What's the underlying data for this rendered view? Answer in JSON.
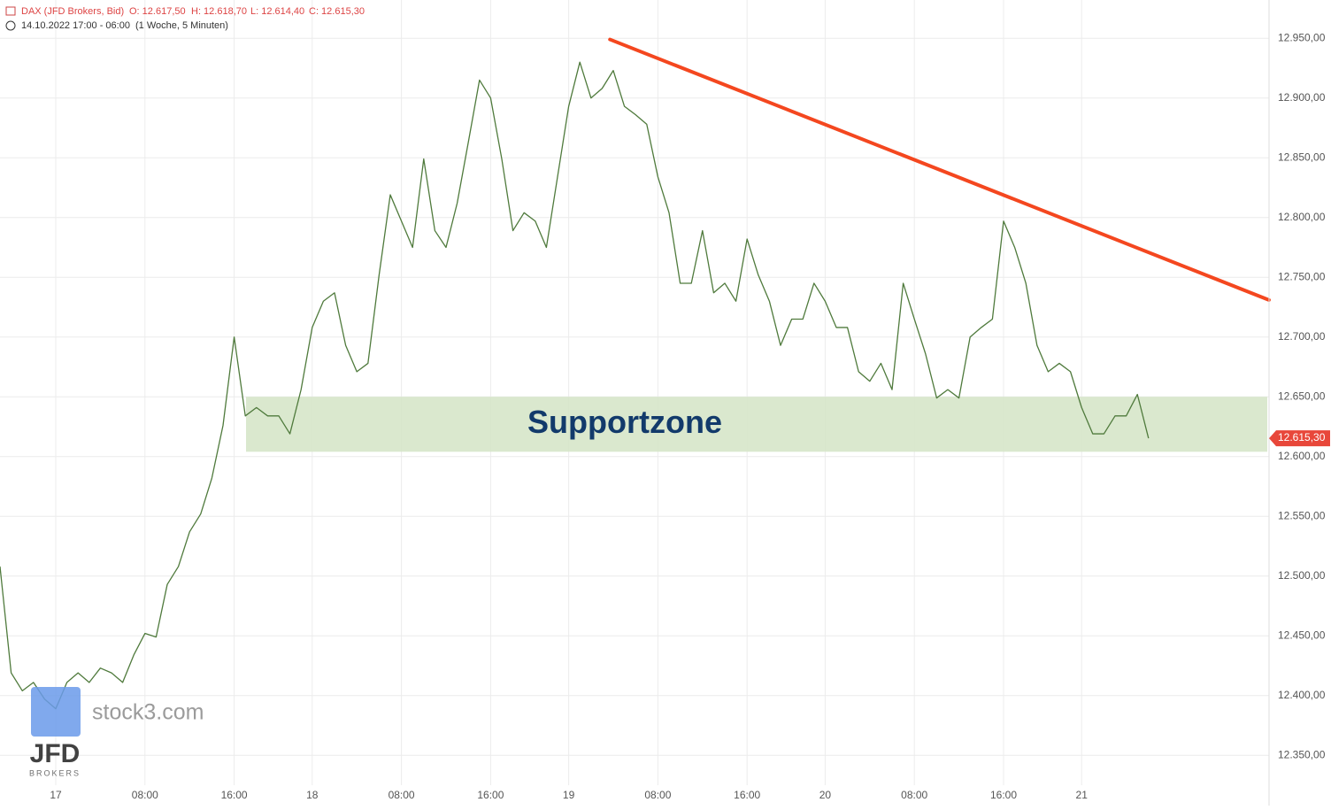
{
  "chart_data": {
    "type": "line",
    "header": {
      "instrument": "DAX (JFD Brokers, Bid)",
      "open": "O: 12.617,50",
      "high": "H: 12.618,70",
      "low": "L: 12.614,40",
      "close": "C: 12.615,30",
      "range": "14.10.2022 17:00 - 06:00",
      "period": "(1 Woche, 5 Minuten)"
    },
    "categories": [
      null,
      null,
      null,
      null,
      null,
      "17",
      null,
      null,
      null,
      null,
      null,
      null,
      null,
      "08:00",
      null,
      null,
      null,
      null,
      null,
      null,
      null,
      "16:00",
      null,
      null,
      null,
      null,
      null,
      null,
      "18",
      null,
      null,
      null,
      null,
      null,
      null,
      null,
      "08:00",
      null,
      null,
      null,
      null,
      null,
      null,
      null,
      "16:00",
      null,
      null,
      null,
      null,
      null,
      null,
      "19",
      null,
      null,
      null,
      null,
      null,
      null,
      null,
      "08:00",
      null,
      null,
      null,
      null,
      null,
      null,
      null,
      "16:00",
      null,
      null,
      null,
      null,
      null,
      null,
      "20",
      null,
      null,
      null,
      null,
      null,
      null,
      null,
      "08:00",
      null,
      null,
      null,
      null,
      null,
      null,
      null,
      "16:00",
      null,
      null,
      null,
      null,
      null,
      null,
      "21",
      null,
      null,
      null,
      null,
      null,
      null
    ],
    "series": [
      {
        "name": "DAX",
        "color": "#4f7a3c",
        "values": [
          12508,
          12419,
          12404,
          12411,
          12397,
          12389,
          12411,
          12419,
          12411,
          12423,
          12419,
          12411,
          12434,
          12452,
          12449,
          12493,
          12508,
          12537,
          12552,
          12582,
          12626,
          12700,
          12634,
          12641,
          12634,
          12634,
          12619,
          12656,
          12708,
          12730,
          12737,
          12693,
          12671,
          12678,
          12752,
          12819,
          12797,
          12775,
          12849,
          12789,
          12775,
          12812,
          12863,
          12915,
          12900,
          12849,
          12789,
          12804,
          12797,
          12775,
          12834,
          12893,
          12930,
          12900,
          12908,
          12923,
          12893,
          12886,
          12878,
          12834,
          12804,
          12745,
          12745,
          12789,
          12737,
          12745,
          12730,
          12782,
          12752,
          12730,
          12693,
          12715,
          12715,
          12745,
          12730,
          12708,
          12708,
          12671,
          12663,
          12678,
          12656,
          12745,
          12715,
          12686,
          12649,
          12656,
          12649,
          12700,
          12708,
          12715,
          12797,
          12775,
          12745,
          12693,
          12671,
          12678,
          12671,
          12641,
          12619,
          12619,
          12634,
          12634,
          12652,
          12615.3
        ]
      }
    ],
    "ylim": [
      12325,
      12982
    ],
    "yticks": [
      {
        "value": 12350,
        "label": "12.350,00"
      },
      {
        "value": 12400,
        "label": "12.400,00"
      },
      {
        "value": 12450,
        "label": "12.450,00"
      },
      {
        "value": 12500,
        "label": "12.500,00"
      },
      {
        "value": 12550,
        "label": "12.550,00"
      },
      {
        "value": 12600,
        "label": "12.600,00"
      },
      {
        "value": 12650,
        "label": "12.650,00"
      },
      {
        "value": 12700,
        "label": "12.700,00"
      },
      {
        "value": 12750,
        "label": "12.750,00"
      },
      {
        "value": 12800,
        "label": "12.800,00"
      },
      {
        "value": 12850,
        "label": "12.850,00"
      },
      {
        "value": 12900,
        "label": "12.900,00"
      },
      {
        "value": 12950,
        "label": "12.950,00"
      }
    ],
    "grid": true,
    "support_zone": {
      "label": "Supportzone",
      "low": 12604,
      "high": 12650,
      "color": "#d6e6c9"
    },
    "trendline": {
      "x": [
        54.7,
        113.8
      ],
      "values": [
        12949,
        12731
      ],
      "color": "#f4471f"
    },
    "last_price": {
      "value": 12615.3,
      "label": "12.615,30",
      "color": "#e8473a"
    },
    "watermark": {
      "site": "stock3.com",
      "broker": "JFD",
      "broker_sub": "BROKERS"
    }
  }
}
